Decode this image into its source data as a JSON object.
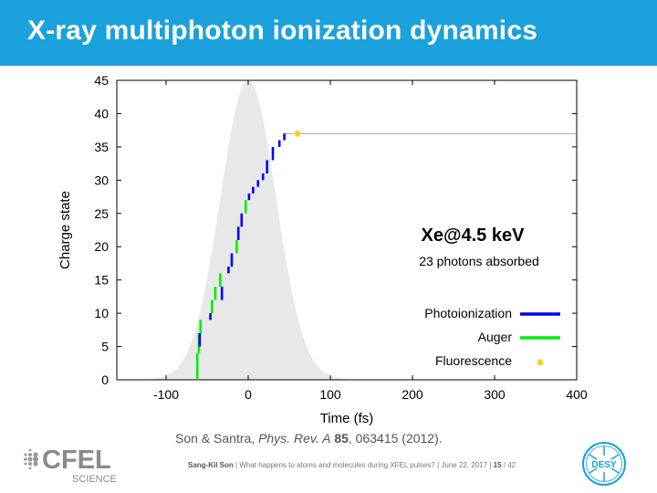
{
  "slide": {
    "title": "X-ray multiphoton ionization dynamics",
    "citation": {
      "authors": "Son & Santra, ",
      "journal": "Phys. Rev. A",
      "volume": "85",
      "rest": ", 063415 (2012)."
    },
    "footer": {
      "presenter": "Sang-Kil Son",
      "talk": "What happens to atoms and molecules during XFEL pulses?",
      "date": "June 22, 2017",
      "page": "15",
      "total": "/ 42",
      "sep": "|"
    },
    "logos": {
      "cfel_text": "CFEL",
      "cfel_sub": "SCIENCE",
      "desy_text": "DESY"
    }
  },
  "chart_data": {
    "type": "line",
    "xlabel": "Time (fs)",
    "ylabel": "Charge state",
    "xlim": [
      -160,
      400
    ],
    "ylim": [
      0,
      45
    ],
    "xticks": [
      -100,
      0,
      100,
      200,
      300,
      400
    ],
    "yticks": [
      0,
      5,
      10,
      15,
      20,
      25,
      30,
      35,
      40,
      45
    ],
    "grid": false,
    "annotation_title": "Xe@4.5 keV",
    "annotation_sub": "23 photons absorbed",
    "legend_position": "bottom-right",
    "pulse_envelope": {
      "center": 0,
      "fwhm": 80,
      "peak": 45,
      "color": "#e8e8e8"
    },
    "colors": {
      "Photoionization": "#0000ee",
      "Auger": "#00ee00",
      "Fluorescence": "#ffcc00"
    },
    "legend": [
      "Photoionization",
      "Auger",
      "Fluorescence"
    ],
    "steps": [
      {
        "t": -62,
        "from": 0,
        "to": 4,
        "type": "Auger"
      },
      {
        "t": -60,
        "from": 4,
        "to": 7,
        "type": "Auger"
      },
      {
        "t": -58,
        "from": 7,
        "to": 9,
        "type": "Auger"
      },
      {
        "t": -59,
        "from": 5,
        "to": 7,
        "type": "Photoionization"
      },
      {
        "t": -46,
        "from": 9,
        "to": 10,
        "type": "Photoionization"
      },
      {
        "t": -44,
        "from": 10,
        "to": 12,
        "type": "Auger"
      },
      {
        "t": -40,
        "from": 12,
        "to": 14,
        "type": "Auger"
      },
      {
        "t": -34,
        "from": 14,
        "to": 16,
        "type": "Auger"
      },
      {
        "t": -32,
        "from": 12,
        "to": 14,
        "type": "Photoionization"
      },
      {
        "t": -24,
        "from": 16,
        "to": 17,
        "type": "Photoionization"
      },
      {
        "t": -20,
        "from": 17,
        "to": 19,
        "type": "Photoionization"
      },
      {
        "t": -14,
        "from": 19,
        "to": 21,
        "type": "Auger"
      },
      {
        "t": -12,
        "from": 21,
        "to": 23,
        "type": "Photoionization"
      },
      {
        "t": -8,
        "from": 23,
        "to": 25,
        "type": "Photoionization"
      },
      {
        "t": -3,
        "from": 25,
        "to": 27,
        "type": "Auger"
      },
      {
        "t": 1,
        "from": 27,
        "to": 28,
        "type": "Photoionization"
      },
      {
        "t": 6,
        "from": 28,
        "to": 29,
        "type": "Photoionization"
      },
      {
        "t": 12,
        "from": 29,
        "to": 30,
        "type": "Photoionization"
      },
      {
        "t": 18,
        "from": 30,
        "to": 31,
        "type": "Photoionization"
      },
      {
        "t": 23,
        "from": 31,
        "to": 33,
        "type": "Photoionization"
      },
      {
        "t": 30,
        "from": 33,
        "to": 35,
        "type": "Photoionization"
      },
      {
        "t": 38,
        "from": 35,
        "to": 36,
        "type": "Photoionization"
      },
      {
        "t": 44,
        "from": 36,
        "to": 37,
        "type": "Photoionization"
      }
    ],
    "final_charge": 37,
    "fluorescence_events": [
      {
        "t": 60,
        "charge": 37
      }
    ]
  }
}
